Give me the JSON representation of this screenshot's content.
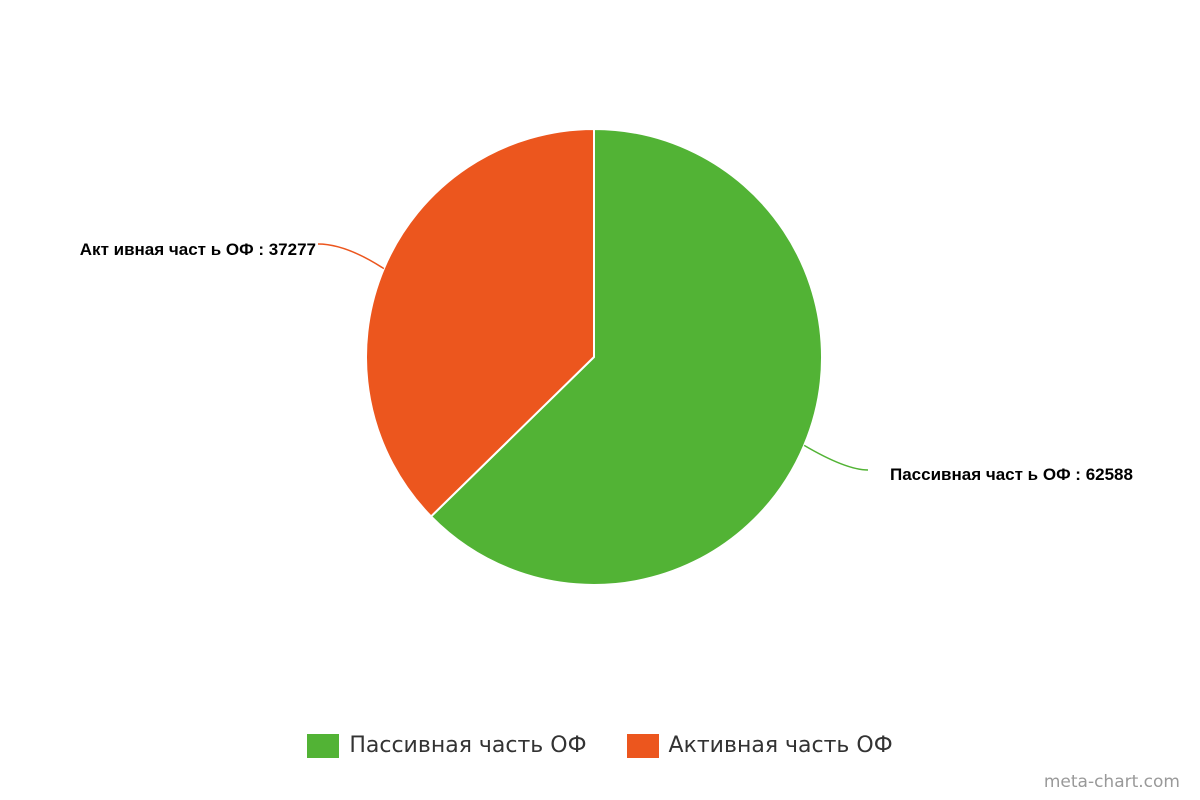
{
  "chart_data": {
    "type": "pie",
    "title": "",
    "slices": [
      {
        "label": "Пассивная часть ОФ",
        "value": 62588,
        "color": "#52b335",
        "data_label": "Пассивная част ь ОФ : 62588"
      },
      {
        "label": "Активная часть ОФ",
        "value": 37277,
        "color": "#ec561e",
        "data_label": "Акт ивная част ь ОФ : 37277"
      }
    ],
    "legend": {
      "position": "bottom"
    }
  },
  "footer": {
    "credit": "meta-chart.com"
  }
}
